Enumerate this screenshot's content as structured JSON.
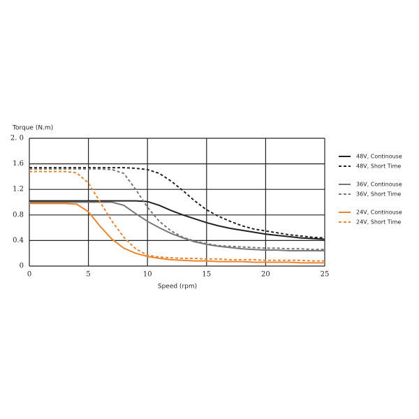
{
  "chart_data": {
    "type": "line",
    "y_label": "Torque (N.m)",
    "x_label": "Speed (rpm)",
    "x": [
      0,
      1,
      2,
      3,
      4,
      5,
      6,
      7,
      8,
      9,
      10,
      11,
      12,
      13,
      14,
      15,
      16,
      17,
      18,
      19,
      20,
      21,
      22,
      23,
      24,
      25
    ],
    "xlim": [
      0,
      25
    ],
    "xticks": [
      0,
      5,
      10,
      15,
      20,
      25
    ],
    "ylim": [
      0,
      2
    ],
    "yticks": [
      0,
      0.4,
      0.8,
      1.2,
      1.6,
      {
        "value": 2,
        "label": "2. 0"
      }
    ],
    "grid": true,
    "legend": "right",
    "series": [
      {
        "name": "48V, Continouse",
        "color": "#222222",
        "style": "solid",
        "values": [
          1.02,
          1.02,
          1.02,
          1.02,
          1.02,
          1.02,
          1.02,
          1.02,
          1.02,
          1.02,
          1.01,
          0.95,
          0.87,
          0.8,
          0.74,
          0.68,
          0.63,
          0.59,
          0.56,
          0.53,
          0.5,
          0.48,
          0.46,
          0.44,
          0.43,
          0.42
        ]
      },
      {
        "name": "48V, Short Time",
        "color": "#222222",
        "style": "dashed",
        "values": [
          1.54,
          1.54,
          1.54,
          1.54,
          1.54,
          1.54,
          1.54,
          1.54,
          1.54,
          1.53,
          1.51,
          1.45,
          1.33,
          1.18,
          1.02,
          0.88,
          0.78,
          0.7,
          0.63,
          0.58,
          0.55,
          0.52,
          0.49,
          0.47,
          0.45,
          0.44
        ]
      },
      {
        "name": "36V, Continouse",
        "color": "#777777",
        "style": "solid",
        "values": [
          1.0,
          1.0,
          1.0,
          1.0,
          1.0,
          1.0,
          1.0,
          1.0,
          0.95,
          0.82,
          0.7,
          0.6,
          0.51,
          0.44,
          0.38,
          0.34,
          0.31,
          0.29,
          0.27,
          0.26,
          0.25,
          0.25,
          0.24,
          0.24,
          0.24,
          0.24
        ]
      },
      {
        "name": "36V, Short Time",
        "color": "#777777",
        "style": "dashed",
        "values": [
          1.52,
          1.52,
          1.52,
          1.52,
          1.52,
          1.52,
          1.52,
          1.51,
          1.45,
          1.2,
          0.92,
          0.7,
          0.55,
          0.45,
          0.39,
          0.35,
          0.32,
          0.31,
          0.3,
          0.29,
          0.28,
          0.28,
          0.27,
          0.27,
          0.26,
          0.26
        ]
      },
      {
        "name": "24V, Continouse",
        "color": "#f0842c",
        "style": "solid",
        "values": [
          0.98,
          0.98,
          0.98,
          0.98,
          0.97,
          0.85,
          0.62,
          0.42,
          0.28,
          0.2,
          0.15,
          0.12,
          0.1,
          0.09,
          0.08,
          0.08,
          0.07,
          0.07,
          0.07,
          0.06,
          0.06,
          0.06,
          0.06,
          0.05,
          0.05,
          0.05
        ]
      },
      {
        "name": "24V, Short Time",
        "color": "#f0842c",
        "style": "dashed",
        "values": [
          1.48,
          1.48,
          1.48,
          1.48,
          1.46,
          1.3,
          1.0,
          0.7,
          0.45,
          0.27,
          0.17,
          0.14,
          0.13,
          0.12,
          0.12,
          0.11,
          0.11,
          0.1,
          0.1,
          0.1,
          0.09,
          0.09,
          0.09,
          0.09,
          0.08,
          0.08
        ]
      }
    ]
  }
}
